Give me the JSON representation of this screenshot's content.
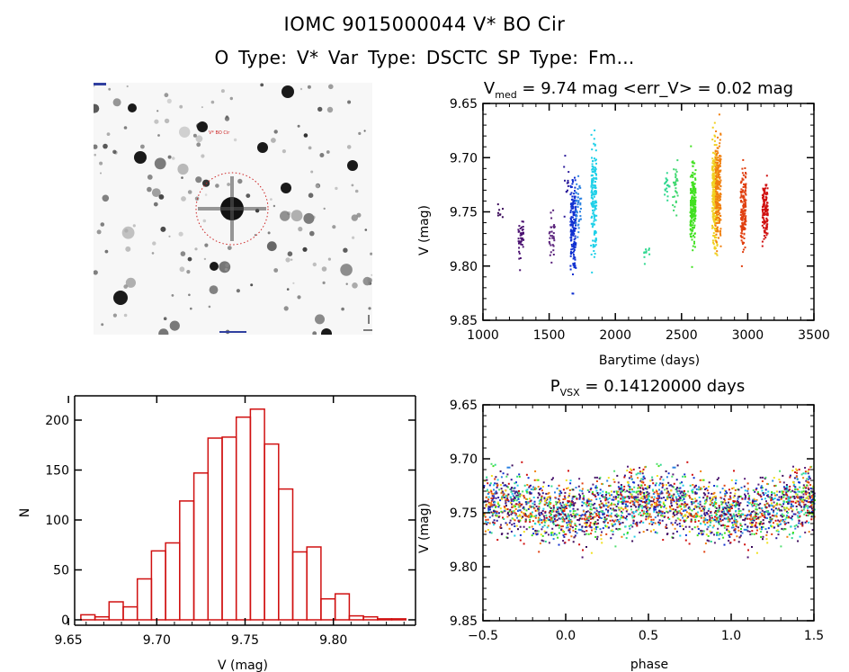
{
  "header": {
    "title": "IOMC 9015000044    V* BO Cir",
    "subtitle": "O Type: V*  Var Type: DSCTC  SP Type: Fm..."
  },
  "image_stamp": {
    "description": "Grayscale finding chart (inverted, stars dark) with dotted red circle around the target star",
    "target_label": "V* BO Cir",
    "circle_color": "#cc2222",
    "label_color_top": "#1a2a9a"
  },
  "colors": {
    "hist_bar": "#d01010",
    "axis": "#000000",
    "season_palette": [
      "#3a0a5a",
      "#4a1070",
      "#58207a",
      "#2b1a9a",
      "#1030d0",
      "#2a80e0",
      "#20d0e8",
      "#30d890",
      "#50e070",
      "#40e020",
      "#f0e020",
      "#f08010",
      "#e04010",
      "#d01010"
    ]
  },
  "chart_data": [
    {
      "type": "scatter",
      "name": "light-curve",
      "title": "V_med = 9.74 mag <err_V> = 0.02 mag",
      "title_parts": {
        "lead": "V",
        "sub": "med",
        "rest": " = 9.74 mag <err_V> = 0.02 mag"
      },
      "xlabel": "Barytime (days)",
      "ylabel": "V (mag)",
      "xlim": [
        1000,
        3500
      ],
      "ylim": [
        9.65,
        9.85
      ],
      "y_inverted": true,
      "xticks": [
        1000,
        1500,
        2000,
        2500,
        3000,
        3500
      ],
      "yticks": [
        "9.65",
        "9.70",
        "9.75",
        "9.80",
        "9.85"
      ],
      "grid": false,
      "seasons": [
        {
          "x": 1125,
          "ymin": 9.735,
          "ymax": 9.765,
          "n": 8,
          "color": "#3a0a5a"
        },
        {
          "x": 1280,
          "ymin": 9.745,
          "ymax": 9.805,
          "n": 40,
          "color": "#4a1070"
        },
        {
          "x": 1515,
          "ymin": 9.738,
          "ymax": 9.805,
          "n": 30,
          "color": "#58207a"
        },
        {
          "x": 1625,
          "ymin": 9.673,
          "ymax": 9.77,
          "n": 12,
          "color": "#2b1a9a"
        },
        {
          "x": 1675,
          "ymin": 9.687,
          "ymax": 9.832,
          "n": 160,
          "color": "#1030d0"
        },
        {
          "x": 1715,
          "ymin": 9.697,
          "ymax": 9.79,
          "n": 40,
          "color": "#2a80e0"
        },
        {
          "x": 1830,
          "ymin": 9.657,
          "ymax": 9.822,
          "n": 160,
          "color": "#20d0e8"
        },
        {
          "x": 2230,
          "ymin": 9.772,
          "ymax": 9.8,
          "n": 10,
          "color": "#30d890"
        },
        {
          "x": 2385,
          "ymin": 9.71,
          "ymax": 9.745,
          "n": 20,
          "color": "#30d890"
        },
        {
          "x": 2445,
          "ymin": 9.678,
          "ymax": 9.778,
          "n": 30,
          "color": "#40d870"
        },
        {
          "x": 2580,
          "ymin": 9.687,
          "ymax": 9.8,
          "n": 200,
          "color": "#40e020"
        },
        {
          "x": 2745,
          "ymin": 9.655,
          "ymax": 9.815,
          "n": 260,
          "color": "#f0d020"
        },
        {
          "x": 2770,
          "ymin": 9.655,
          "ymax": 9.805,
          "n": 200,
          "color": "#f08010"
        },
        {
          "x": 2960,
          "ymin": 9.692,
          "ymax": 9.805,
          "n": 150,
          "color": "#e04010"
        },
        {
          "x": 3125,
          "ymin": 9.705,
          "ymax": 9.79,
          "n": 120,
          "color": "#d01010"
        }
      ]
    },
    {
      "type": "bar",
      "name": "histogram",
      "title": "",
      "xlabel": "V (mag)",
      "ylabel": "N",
      "xlim": [
        9.65,
        9.85
      ],
      "ylim": [
        0,
        220
      ],
      "xticks": [
        "9.65",
        "9.70",
        "9.75",
        "9.80"
      ],
      "yticks": [
        "0",
        "50",
        "100",
        "150",
        "200"
      ],
      "bin_width": 0.008,
      "bin_start": 9.657,
      "values": [
        5,
        3,
        18,
        13,
        41,
        69,
        77,
        119,
        147,
        182,
        183,
        203,
        211,
        176,
        131,
        68,
        73,
        21,
        26,
        4,
        3,
        1,
        1
      ],
      "grid": false
    },
    {
      "type": "scatter",
      "name": "phased-light-curve",
      "title": "P_VSX = 0.14120000 days",
      "title_parts": {
        "lead": "P",
        "sub": "VSX",
        "rest": " = 0.14120000 days"
      },
      "xlabel": "phase",
      "ylabel": "V (mag)",
      "xlim": [
        -0.5,
        1.5
      ],
      "ylim": [
        9.65,
        9.85
      ],
      "y_inverted": true,
      "xticks": [
        "-0.5",
        "0.0",
        "0.5",
        "1.0",
        "1.5"
      ],
      "yticks": [
        "9.65",
        "9.70",
        "9.75",
        "9.80",
        "9.85"
      ],
      "mean_mag": 9.745,
      "spread_mag": 0.022,
      "n_points_per_cycle": 1400,
      "grid": false
    }
  ]
}
